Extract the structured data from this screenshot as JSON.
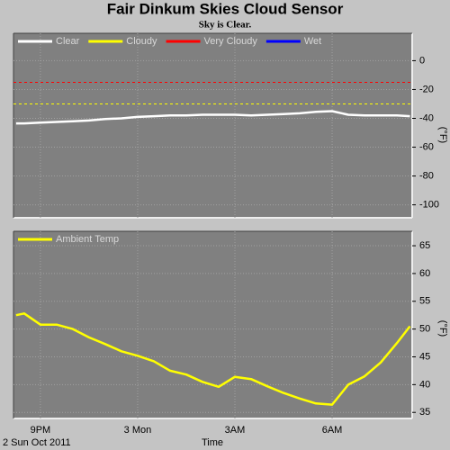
{
  "chart_data": [
    {
      "type": "line",
      "title": "Fair Dinkum Skies Cloud Sensor",
      "subtitle": "Sky is Clear.",
      "ylabel": "(°F)",
      "x": [
        20.25,
        20.5,
        21,
        21.5,
        22,
        22.5,
        23,
        23.5,
        24,
        24.5,
        25,
        25.5,
        26,
        26.5,
        27,
        27.5,
        28,
        28.5,
        29,
        29.5,
        30,
        30.5,
        31,
        31.5,
        32,
        32.4
      ],
      "xlim": [
        20.17,
        32.47
      ],
      "ylim": [
        -109,
        19
      ],
      "yticks": [
        0,
        -20,
        -40,
        -60,
        -80,
        -100
      ],
      "grid": true,
      "series": [
        {
          "name": "Clear",
          "color": "#ffffff",
          "values": [
            -43.5,
            -43.5,
            -43,
            -42.5,
            -42,
            -41.5,
            -40.5,
            -40,
            -39,
            -38.5,
            -38,
            -38,
            -37.5,
            -37.5,
            -37.5,
            -38,
            -37.5,
            -37,
            -36.5,
            -35.5,
            -35,
            -37.5,
            -38,
            -38,
            -38,
            -38.5
          ]
        },
        {
          "name": "Cloudy",
          "color": "#ffff00",
          "threshold": -30
        },
        {
          "name": "Very Cloudy",
          "color": "#ff0000",
          "threshold": -15
        },
        {
          "name": "Wet",
          "color": "#0000ff"
        }
      ]
    },
    {
      "type": "line",
      "ylabel": "(°F)",
      "xlabel": "Time",
      "date": "2 Sun Oct 2011",
      "x": [
        20.25,
        20.5,
        21,
        21.5,
        22,
        22.5,
        23,
        23.5,
        24,
        24.5,
        25,
        25.5,
        26,
        26.5,
        27,
        27.5,
        28,
        28.5,
        29,
        29.5,
        30,
        30.5,
        31,
        31.5,
        32,
        32.4
      ],
      "xlim": [
        20.17,
        32.47
      ],
      "ylim": [
        33.9,
        67.6
      ],
      "yticks": [
        65,
        60,
        55,
        50,
        45,
        40,
        35
      ],
      "grid": true,
      "xticks": [
        {
          "value": 21,
          "label": "9PM"
        },
        {
          "value": 24,
          "label": "3 Mon"
        },
        {
          "value": 27,
          "label": "3AM"
        },
        {
          "value": 30,
          "label": "6AM"
        }
      ],
      "series": [
        {
          "name": "Ambient Temp",
          "color": "#ffff00",
          "values": [
            52.5,
            52.8,
            50.8,
            50.8,
            50.0,
            48.5,
            47.3,
            46.0,
            45.2,
            44.2,
            42.5,
            41.8,
            40.5,
            39.6,
            41.4,
            41.0,
            39.7,
            38.5,
            37.5,
            36.6,
            36.4,
            40.0,
            41.5,
            44.0,
            47.5,
            50.5
          ]
        }
      ]
    }
  ]
}
